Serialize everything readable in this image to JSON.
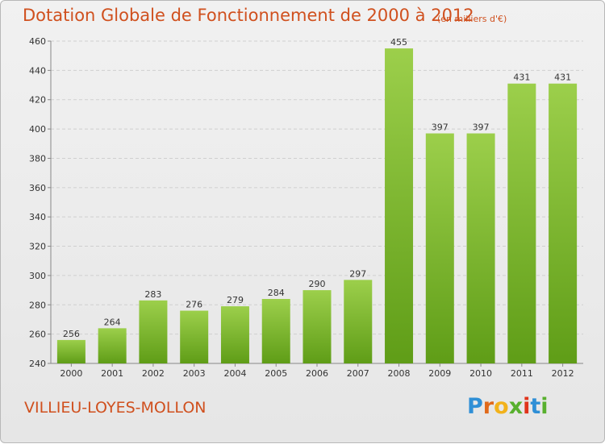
{
  "title": "Dotation Globale de Fonctionnement de 2000 à 2012",
  "unit": "(en milliers d'€)",
  "town": "VILLIEU-LOYES-MOLLON",
  "logo": {
    "letters": [
      "P",
      "r",
      "o",
      "x",
      "i",
      "t",
      "i"
    ],
    "colors": [
      "#2f8fd6",
      "#e06a1b",
      "#f2b21b",
      "#58b02e",
      "#e0341b",
      "#2f8fd6",
      "#58b02e"
    ]
  },
  "colors": {
    "bar_top": "#9ccf4b",
    "bar_bottom": "#5f9d17",
    "accent": "#d0501e"
  },
  "chart_data": {
    "type": "bar",
    "categories": [
      "2000",
      "2001",
      "2002",
      "2003",
      "2004",
      "2005",
      "2006",
      "2007",
      "2008",
      "2009",
      "2010",
      "2011",
      "2012"
    ],
    "values": [
      256,
      264,
      283,
      276,
      279,
      284,
      290,
      297,
      455,
      397,
      397,
      431,
      431
    ],
    "ylim": [
      240,
      460
    ],
    "yticks": [
      240,
      260,
      280,
      300,
      320,
      340,
      360,
      380,
      400,
      420,
      440,
      460
    ],
    "grid": true
  }
}
